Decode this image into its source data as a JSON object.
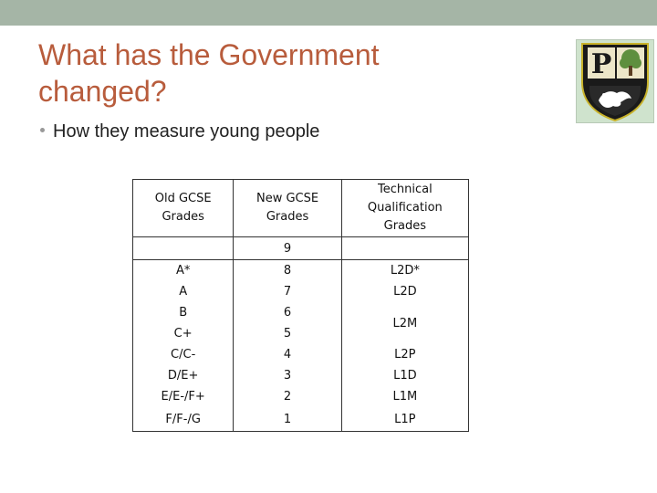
{
  "slide": {
    "title_line1": "What has the Government",
    "title_line2": "changed?",
    "bullet": "How they measure young people",
    "logo_label": "P",
    "colors": {
      "title": "#b85c3c",
      "topbar": "#a5b5a6",
      "logo_shield": "#1a1a1a",
      "logo_gold": "#c8b22a",
      "logo_tree": "#5e8f3e"
    }
  },
  "table": {
    "headers": [
      "Old GCSE Grades",
      "New GCSE Grades",
      "Technical Qualification Grades"
    ],
    "old": [
      "",
      "A*",
      "A",
      "B",
      "C+",
      "C/C-",
      "D/E+",
      "E/E-/F+",
      "F/F-/G"
    ],
    "new": [
      "9",
      "8",
      "7",
      "6",
      "5",
      "4",
      "3",
      "2",
      "1"
    ],
    "technical": [
      "",
      "L2D*",
      "L2D",
      "L2M",
      "L2P",
      "L1D",
      "L1M",
      "L1P"
    ]
  }
}
